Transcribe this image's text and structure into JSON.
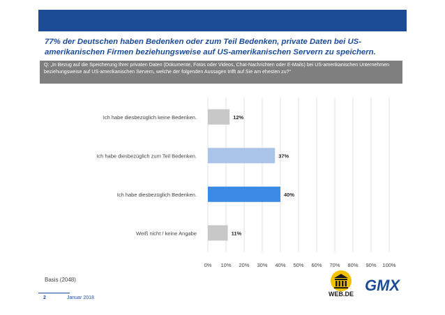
{
  "title": "77% der Deutschen haben Bedenken oder zum Teil Bedenken, private Daten bei US-amerikanischen Firmen beziehungsweise auf US-amerikanischen Servern zu speichern.",
  "question": "Q: „In Bezug auf die Speicherung Ihrer privaten Daten (Dokumente, Fotos oder Videos, Chat-Nachrichten oder E-Mails) bei US-amerikanischen Unternehmen beziehungsweise auf US-amerikanischen Servern, welche der folgenden Aussagen trifft auf Sie am ehesten zu?“",
  "basis": "Basis (2048)",
  "page_number": "2",
  "date": "Januar 2018",
  "logos": {
    "webde": "WEB.DE",
    "gmx": "GMX"
  },
  "colors": {
    "brand_blue": "#1d4c97",
    "question_bg": "#7f7f7f"
  },
  "chart_data": {
    "type": "bar",
    "orientation": "horizontal",
    "categories": [
      "Ich habe diesbezüglich keine Bedenken.",
      "Ich habe diesbezüglich zum Teil Bedenken.",
      "Ich habe diesbezüglich Bedenken.",
      "Weiß nicht / keine Angabe"
    ],
    "values": [
      12,
      37,
      40,
      11
    ],
    "data_labels": [
      "12%",
      "37%",
      "40%",
      "11%"
    ],
    "bar_colors": [
      "#c8c8c8",
      "#a9c4e8",
      "#3b8ae6",
      "#c8c8c8"
    ],
    "xlim": [
      0,
      100
    ],
    "x_ticks": [
      "0%",
      "10%",
      "20%",
      "30%",
      "40%",
      "50%",
      "60%",
      "70%",
      "80%",
      "90%",
      "100%"
    ],
    "grid": true
  }
}
